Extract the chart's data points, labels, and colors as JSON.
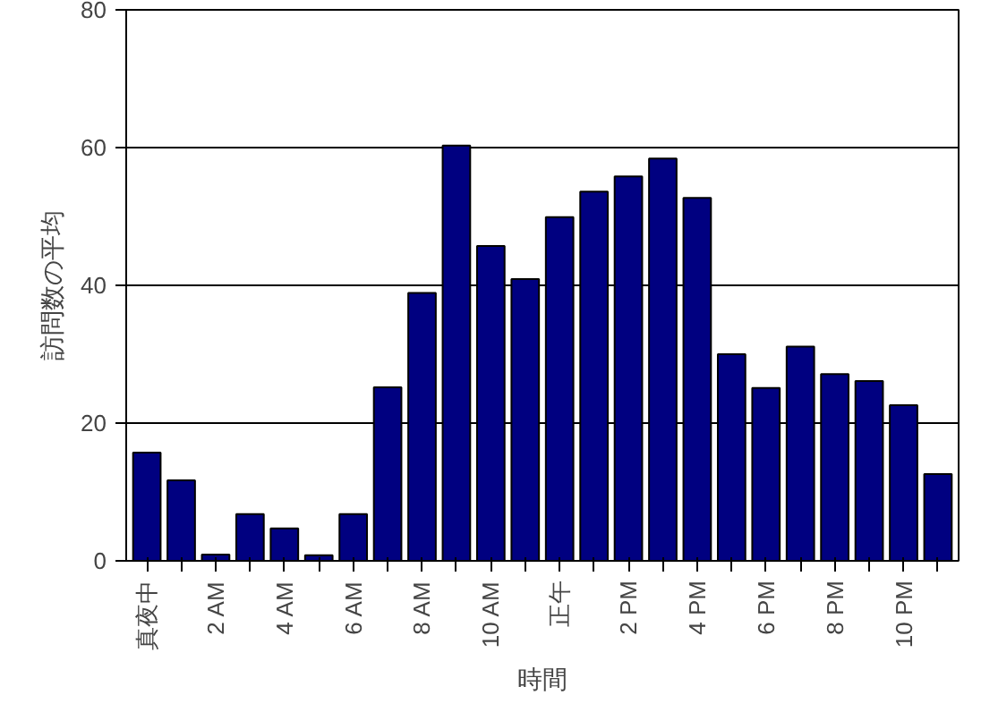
{
  "chart_data": {
    "type": "bar",
    "xlabel": "時間",
    "ylabel": "訪問数の平均",
    "categories": [
      "真夜中",
      null,
      "2 AM",
      null,
      "4 AM",
      null,
      "6 AM",
      null,
      "8 AM",
      null,
      "10 AM",
      null,
      "正午",
      null,
      "2 PM",
      null,
      "4 PM",
      null,
      "6 PM",
      null,
      "8 PM",
      null,
      "10 PM",
      null
    ],
    "values": [
      15.7,
      11.7,
      0.9,
      6.8,
      4.7,
      0.8,
      6.8,
      25.2,
      38.9,
      60.3,
      45.7,
      40.9,
      49.9,
      53.6,
      55.8,
      58.4,
      52.7,
      30,
      25.1,
      31.1,
      27.1,
      26.1,
      22.6,
      12.6
    ],
    "color": "#000080",
    "ylim": [
      0,
      80
    ],
    "yticks": [
      0,
      20,
      40,
      60,
      80
    ],
    "grid": "y"
  }
}
